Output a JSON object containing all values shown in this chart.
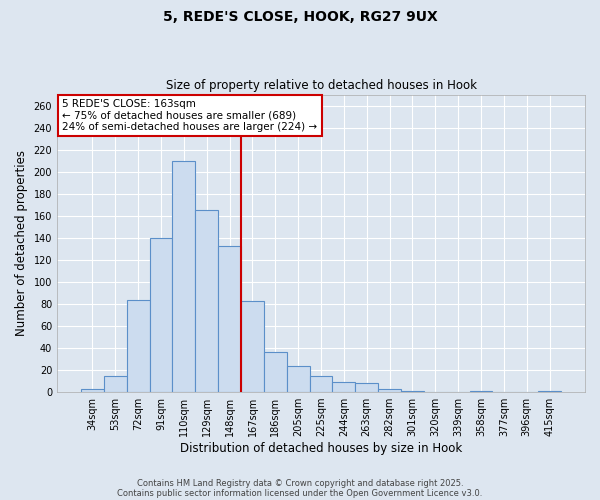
{
  "title": "5, REDE'S CLOSE, HOOK, RG27 9UX",
  "subtitle": "Size of property relative to detached houses in Hook",
  "xlabel": "Distribution of detached houses by size in Hook",
  "ylabel": "Number of detached properties",
  "categories": [
    "34sqm",
    "53sqm",
    "72sqm",
    "91sqm",
    "110sqm",
    "129sqm",
    "148sqm",
    "167sqm",
    "186sqm",
    "205sqm",
    "225sqm",
    "244sqm",
    "263sqm",
    "282sqm",
    "301sqm",
    "320sqm",
    "339sqm",
    "358sqm",
    "377sqm",
    "396sqm",
    "415sqm"
  ],
  "values": [
    3,
    15,
    84,
    140,
    210,
    165,
    133,
    83,
    36,
    24,
    15,
    9,
    8,
    3,
    1,
    0,
    0,
    1,
    0,
    0,
    1
  ],
  "bar_color": "#ccdcef",
  "bar_edge_color": "#5b8fc9",
  "vline_color": "#cc0000",
  "annotation_title": "5 REDE'S CLOSE: 163sqm",
  "annotation_line1": "← 75% of detached houses are smaller (689)",
  "annotation_line2": "24% of semi-detached houses are larger (224) →",
  "annotation_box_color": "#ffffff",
  "annotation_box_edge": "#cc0000",
  "ylim": [
    0,
    270
  ],
  "yticks": [
    0,
    20,
    40,
    60,
    80,
    100,
    120,
    140,
    160,
    180,
    200,
    220,
    240,
    260
  ],
  "footer1": "Contains HM Land Registry data © Crown copyright and database right 2025.",
  "footer2": "Contains public sector information licensed under the Open Government Licence v3.0.",
  "bg_color": "#dde6f0",
  "grid_color": "#ffffff"
}
